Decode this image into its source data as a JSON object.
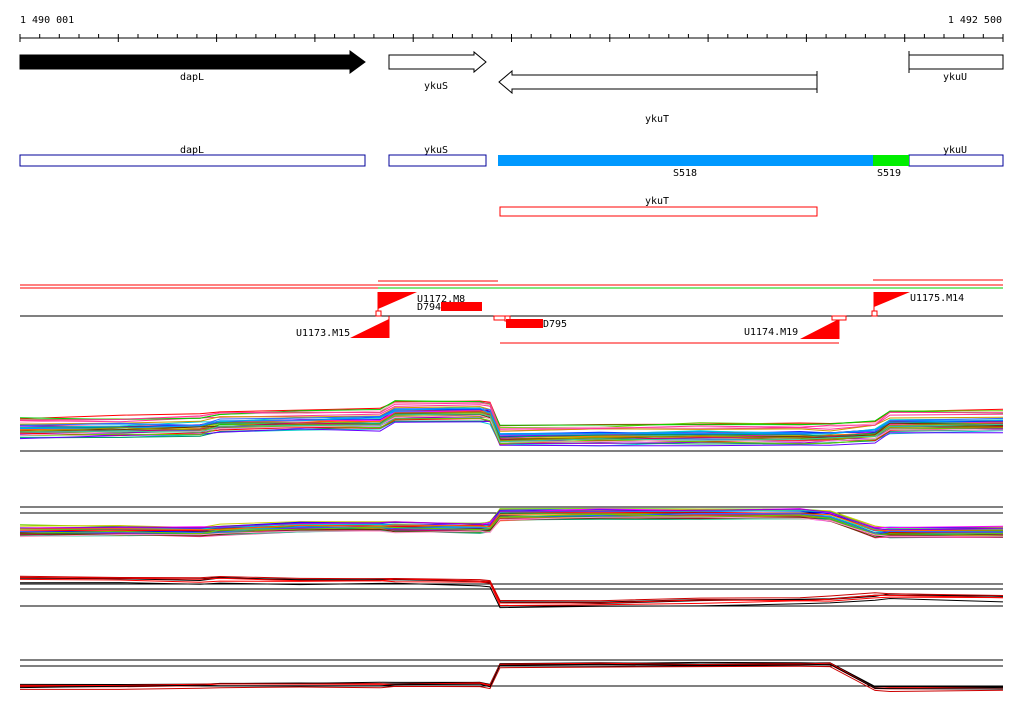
{
  "coordinates": {
    "start_label": "1 490 001",
    "end_label": "1 492 500",
    "start": 1490001,
    "end": 1492500
  },
  "genes": [
    {
      "name": "dapL",
      "strand": "+",
      "style": "filled"
    },
    {
      "name": "ykuS",
      "strand": "+",
      "style": "outline"
    },
    {
      "name": "ykuT",
      "strand": "-",
      "style": "outline"
    },
    {
      "name": "ykuU",
      "strand": "+",
      "style": "outline"
    }
  ],
  "annotation_track": [
    {
      "name": "dapL"
    },
    {
      "name": "ykuS"
    },
    {
      "name": "ykuU"
    }
  ],
  "segments": [
    {
      "name": "S518",
      "color": "#0099ff"
    },
    {
      "name": "S519",
      "color": "#00ee00"
    }
  ],
  "transcript_box": {
    "name": "ykuT",
    "color": "#ff0000"
  },
  "features": [
    {
      "name": "U1172.M8"
    },
    {
      "name": "D794"
    },
    {
      "name": "U1173.M15"
    },
    {
      "name": "D795"
    },
    {
      "name": "U1174.M19"
    },
    {
      "name": "U1175.M14"
    }
  ],
  "colors": {
    "feature": "#ff0000",
    "gene_annotation": "#000099",
    "upper_line": "#ff0000",
    "lower_line": "#00cc00"
  }
}
